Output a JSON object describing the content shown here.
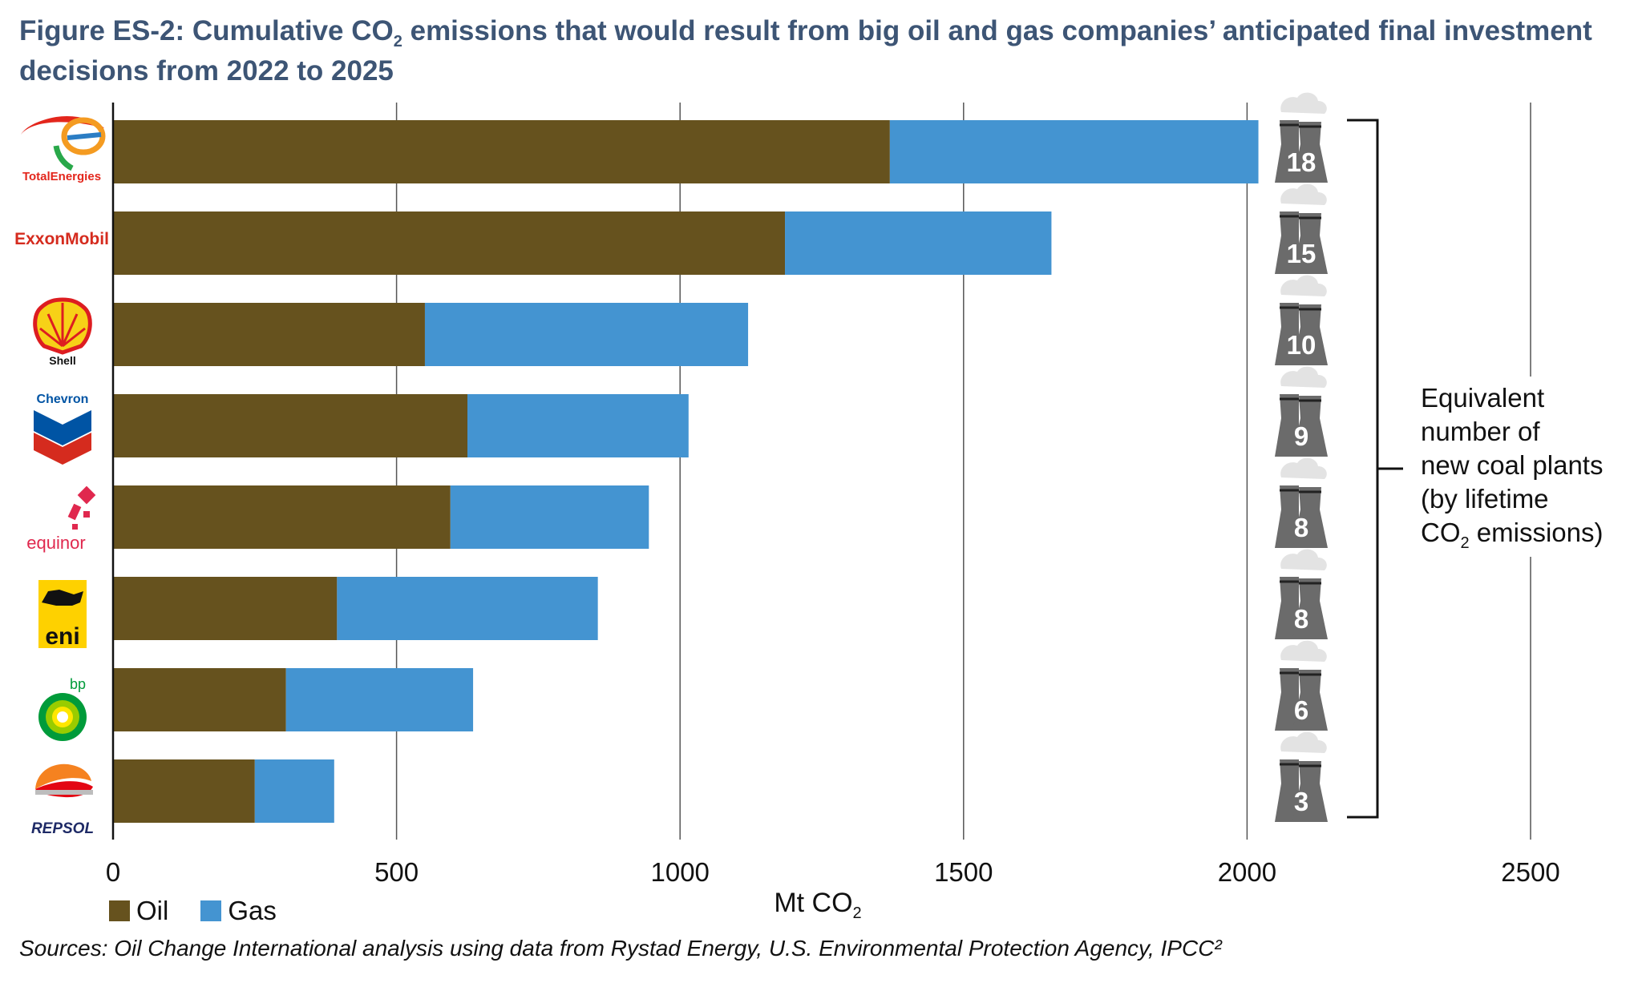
{
  "title": {
    "part1": "Figure ES-2: Cumulative CO",
    "sub": "2",
    "part2": " emissions that would result from big oil and gas companies’ anticipated final investment decisions from 2022 to 2025"
  },
  "chart_data": {
    "type": "bar",
    "orientation": "horizontal",
    "stacked": true,
    "categories": [
      "TotalEnergies",
      "ExxonMobil",
      "Shell",
      "Chevron",
      "equinor",
      "eni",
      "bp",
      "REPSOL"
    ],
    "series": [
      {
        "name": "Oil",
        "color": "#66521e",
        "values": [
          1370,
          1185,
          550,
          625,
          595,
          395,
          305,
          250
        ]
      },
      {
        "name": "Gas",
        "color": "#4494d1",
        "values": [
          650,
          470,
          570,
          390,
          350,
          460,
          330,
          140
        ]
      }
    ],
    "xlim": [
      0,
      2500
    ],
    "xticks": [
      0,
      500,
      1000,
      1500,
      2000,
      2500
    ],
    "grid": true,
    "xlabel": "Mt CO",
    "xlabel_sub": "2",
    "coal_plants": [
      18,
      15,
      10,
      9,
      8,
      8,
      6,
      3
    ],
    "annotation_lines": [
      "Equivalent",
      "number of",
      "new coal plants",
      "(by lifetime"
    ],
    "annotation_last": "CO",
    "annotation_last_sub": "2",
    "annotation_last_tail": " emissions)",
    "legend_position": "bottom-left"
  },
  "logos": {
    "totalenergies": "TotalEnergies",
    "exxonmobil": "ExxonMobil",
    "shell": "Shell",
    "chevron": "Chevron",
    "equinor": "equinor",
    "eni": "eni",
    "bp": "bp",
    "repsol": "REPSOL"
  },
  "colors": {
    "oil": "#66521e",
    "gas": "#4494d1",
    "title": "#3d5575",
    "grid": "#555555",
    "plant": "#6b6b6b"
  },
  "legend": {
    "oil": "Oil",
    "gas": "Gas"
  },
  "source": "Sources: Oil Change International analysis using data from Rystad Energy, U.S. Environmental Protection Agency, IPCC²"
}
